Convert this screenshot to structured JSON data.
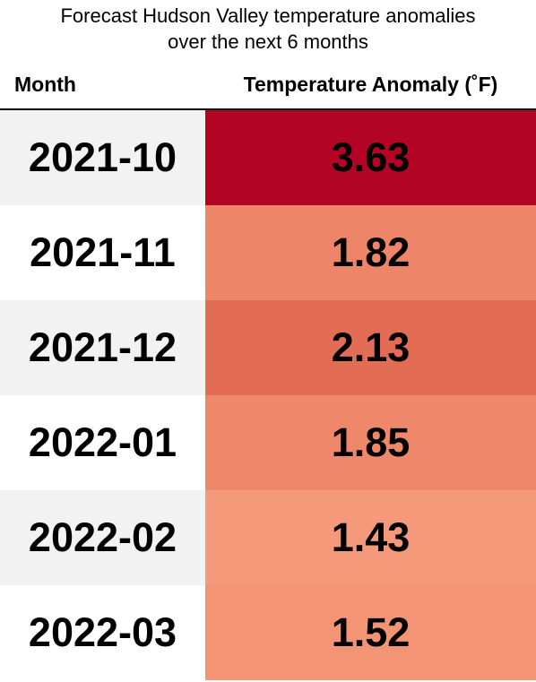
{
  "title_lines": [
    "Forecast Hudson Valley temperature anomalies",
    "over the next 6 months"
  ],
  "chart_data": {
    "type": "table",
    "title": "Forecast Hudson Valley temperature anomalies over the next 6 months",
    "columns": [
      "Month",
      "Temperature Anomaly (˚F)"
    ],
    "rows": [
      {
        "month": "2021-10",
        "value": "3.63"
      },
      {
        "month": "2021-11",
        "value": "1.82"
      },
      {
        "month": "2021-12",
        "value": "2.13"
      },
      {
        "month": "2022-01",
        "value": "1.85"
      },
      {
        "month": "2022-02",
        "value": "1.43"
      },
      {
        "month": "2022-03",
        "value": "1.52"
      }
    ],
    "colors": {
      "row_stripe": "#f2f2f2",
      "row_plain": "#ffffff",
      "value_cells": [
        "#b40426",
        "#ee8468",
        "#e36c55",
        "#ef886b",
        "#f49a7b",
        "#f39475"
      ]
    }
  }
}
